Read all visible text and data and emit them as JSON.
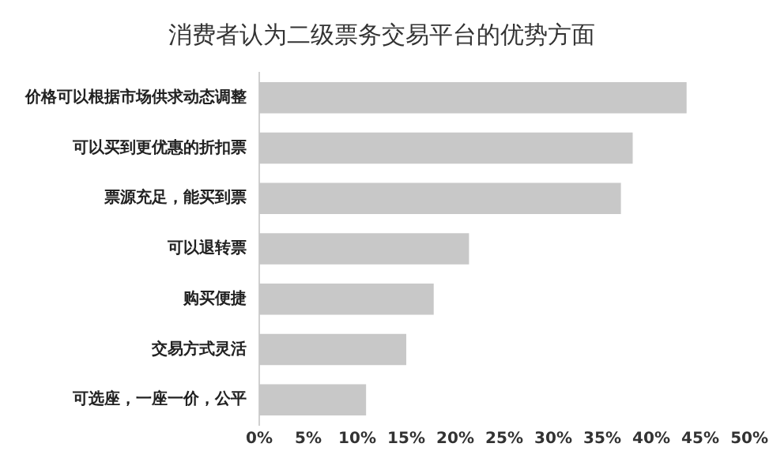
{
  "chart_data": {
    "type": "bar",
    "orientation": "horizontal",
    "title": "消费者认为二级票务交易平台的优势方面",
    "categories": [
      "价格可以根据市场供求动态调整",
      "可以买到更优惠的折扣票",
      "票源充足，能买到票",
      "可以退转票",
      "购买便捷",
      "交易方式灵活",
      "可选座，一座一价，公平"
    ],
    "values": [
      43.6,
      38.1,
      36.9,
      21.4,
      17.8,
      15.0,
      10.9
    ],
    "color": "#c8c8c8",
    "xlim": [
      0,
      50
    ],
    "xticks": [
      {
        "value": 0,
        "label": "0%"
      },
      {
        "value": 5,
        "label": "5%"
      },
      {
        "value": 10,
        "label": "10%"
      },
      {
        "value": 15,
        "label": "15%"
      },
      {
        "value": 20,
        "label": "20%"
      },
      {
        "value": 25,
        "label": "25%"
      },
      {
        "value": 30,
        "label": "30%"
      },
      {
        "value": 35,
        "label": "35%"
      },
      {
        "value": 40,
        "label": "40%"
      },
      {
        "value": 45,
        "label": "45%"
      },
      {
        "value": 50,
        "label": "50%"
      }
    ],
    "grid": false,
    "legend": false
  }
}
